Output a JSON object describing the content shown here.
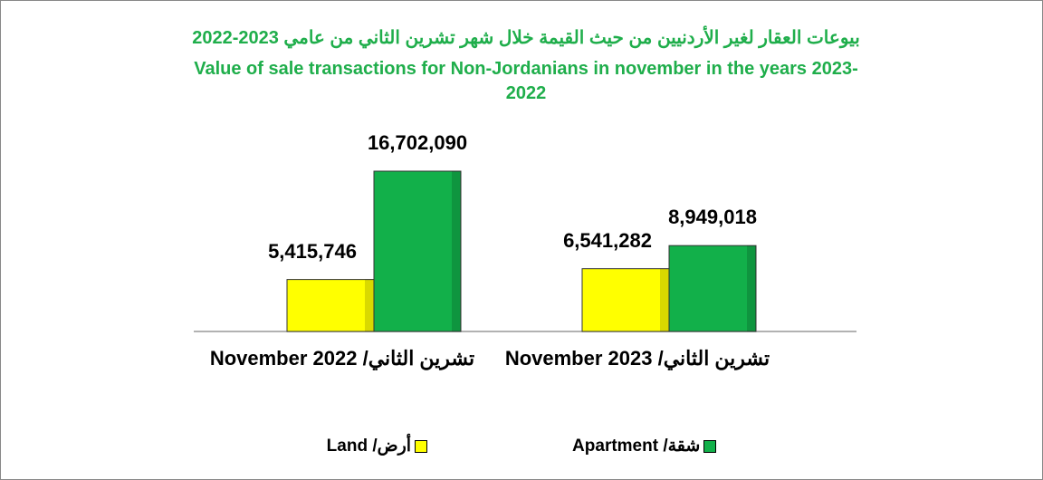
{
  "chart_data": {
    "type": "bar",
    "title": "بيوعات العقار لغير الأردنيين من حيث القيمة خلال شهر تشرين الثاني من عامي 2023-2022",
    "subtitle": "Value of sale transactions for Non-Jordanians in november in the years 2023-2022",
    "categories": [
      "تشرين الثاني/ November 2022",
      "تشرين الثاني/ November 2023"
    ],
    "series": [
      {
        "name": "أرض/ Land",
        "color": "#ffff00",
        "values": [
          5415746,
          6541282
        ],
        "value_labels": [
          "5,415,746",
          "6,541,282"
        ]
      },
      {
        "name": "شقة/ Apartment",
        "color": "#12b04a",
        "values": [
          16702090,
          8949018
        ],
        "value_labels": [
          "16,702,090",
          "8,949,018"
        ]
      }
    ]
  }
}
